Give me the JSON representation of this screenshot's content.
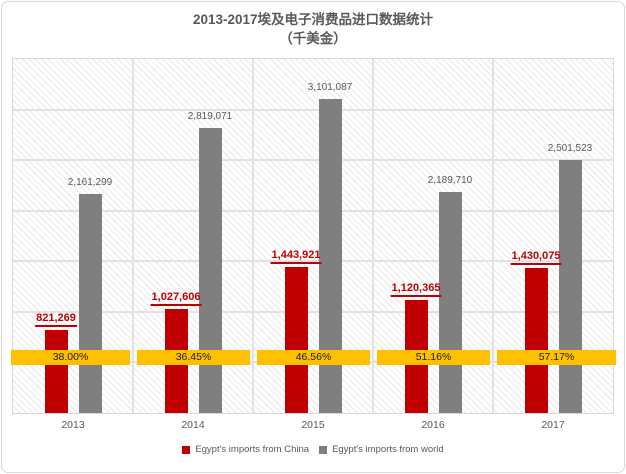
{
  "title": {
    "line1": "2013-2017埃及电子消费品进口数据统计",
    "line2": "（千美金）"
  },
  "chart_data": {
    "type": "bar",
    "title": "2013-2017埃及电子消费品进口数据统计（千美金）",
    "categories": [
      "2013",
      "2014",
      "2015",
      "2016",
      "2017"
    ],
    "series": [
      {
        "name": "Egypt's imports from China",
        "color": "#c00000",
        "values": [
          821269,
          1027606,
          1443921,
          1120365,
          1430075
        ]
      },
      {
        "name": "Egypt's imports from world",
        "color": "#7f7f7f",
        "values": [
          2161299,
          2819071,
          3101087,
          2189710,
          2501523
        ]
      }
    ],
    "percent_band": {
      "color": "#ffc000",
      "values": [
        "38.00%",
        "36.45%",
        "46.56%",
        "51.16%",
        "57.17%"
      ]
    },
    "xlabel": "",
    "ylabel": "",
    "ylim": [
      0,
      3500000
    ],
    "gridline_step": 500000,
    "grid": true,
    "legend_position": "bottom"
  },
  "colors": {
    "china_bar": "#c00000",
    "world_bar": "#7f7f7f",
    "percent_band": "#ffc000",
    "gridline": "#e2e2e2",
    "text_gray": "#595959"
  }
}
